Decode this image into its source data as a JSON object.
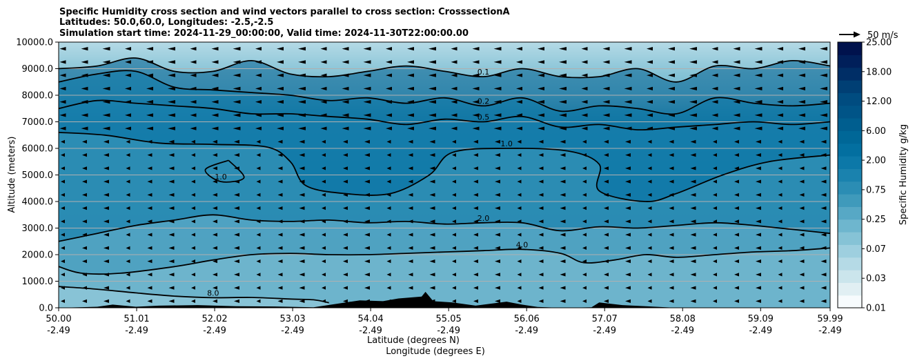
{
  "chart_data": {
    "type": "contour",
    "title_lines": [
      "Specific Humidity cross section and wind vectors parallel to cross section: CrosssectionA",
      "Latitudes: 50.0,60.0, Longitudes: -2.5,-2.5",
      "Simulation start time: 2024-11-29_00:00:00, Valid time: 2024-11-30T22:00:00.00"
    ],
    "ylabel": "Altitude (meters)",
    "xlabel_lat": "Latitude (degrees N)",
    "xlabel_lon": "Longitude (degrees E)",
    "ylim": [
      0,
      10000
    ],
    "xlim": [
      50.0,
      59.99
    ],
    "y_ticks": [
      "0.0",
      "1000.0",
      "2000.0",
      "3000.0",
      "4000.0",
      "5000.0",
      "6000.0",
      "7000.0",
      "8000.0",
      "9000.0",
      "10000.0"
    ],
    "y_tick_values": [
      0,
      1000,
      2000,
      3000,
      4000,
      5000,
      6000,
      7000,
      8000,
      9000,
      10000
    ],
    "x_ticks_lat": [
      "50.00",
      "51.01",
      "52.02",
      "53.03",
      "54.04",
      "55.05",
      "56.06",
      "57.07",
      "58.08",
      "59.09",
      "59.99"
    ],
    "x_ticks_lon": [
      "-2.49",
      "-2.49",
      "-2.49",
      "-2.49",
      "-2.49",
      "-2.49",
      "-2.49",
      "-2.49",
      "-2.49",
      "-2.49",
      "-2.49"
    ],
    "x_tick_values": [
      50.0,
      51.01,
      52.02,
      53.03,
      54.04,
      55.05,
      56.06,
      57.07,
      58.08,
      59.09,
      59.99
    ],
    "grid": "horizontal",
    "colorbar": {
      "label": "Specific Humidity g/kg",
      "ticks": [
        "0.01",
        "0.03",
        "0.07",
        "0.25",
        "0.75",
        "2.00",
        "6.00",
        "12.00",
        "18.00",
        "25.00"
      ],
      "colors": [
        "#f7fbfd",
        "#e1eff3",
        "#cbe5ec",
        "#b5dae6",
        "#9ecfdf",
        "#86c3d6",
        "#6eb6ce",
        "#57a8c5",
        "#3f9abb",
        "#2b8db4",
        "#1a82ae",
        "#0c78a8",
        "#036fa0",
        "#006797",
        "#005e8f",
        "#005487",
        "#004c80",
        "#003f74",
        "#002e66",
        "#001f5a",
        "#00124d"
      ]
    },
    "wind_key_label": "50 m/s",
    "contours": [
      {
        "label": "8.0",
        "points": [
          [
            50.0,
            800
          ],
          [
            50.5,
            700
          ],
          [
            51.0,
            560
          ],
          [
            51.5,
            440
          ],
          [
            52.0,
            380
          ],
          [
            52.5,
            390
          ],
          [
            53.0,
            330
          ],
          [
            53.3,
            300
          ],
          [
            53.5,
            190
          ]
        ]
      },
      {
        "label": "4.0",
        "points": [
          [
            50.0,
            1550
          ],
          [
            50.3,
            1300
          ],
          [
            50.8,
            1300
          ],
          [
            51.5,
            1550
          ],
          [
            52.0,
            1800
          ],
          [
            52.5,
            2000
          ],
          [
            53.0,
            2050
          ],
          [
            53.5,
            2000
          ],
          [
            54.0,
            2000
          ],
          [
            54.5,
            2050
          ],
          [
            55.0,
            2100
          ],
          [
            55.5,
            2150
          ],
          [
            56.0,
            2200
          ],
          [
            56.5,
            2050
          ],
          [
            56.8,
            1700
          ],
          [
            57.2,
            1800
          ],
          [
            57.6,
            2000
          ],
          [
            58.0,
            1900
          ],
          [
            58.5,
            2000
          ],
          [
            59.0,
            2100
          ],
          [
            59.5,
            2150
          ],
          [
            59.99,
            2250
          ]
        ]
      },
      {
        "label": "2.0",
        "points": [
          [
            50.0,
            2500
          ],
          [
            50.5,
            2800
          ],
          [
            51.0,
            3100
          ],
          [
            51.5,
            3300
          ],
          [
            52.0,
            3500
          ],
          [
            52.5,
            3300
          ],
          [
            53.0,
            3250
          ],
          [
            53.5,
            3300
          ],
          [
            54.0,
            3200
          ],
          [
            54.5,
            3250
          ],
          [
            55.0,
            3150
          ],
          [
            55.5,
            3200
          ],
          [
            56.0,
            3200
          ],
          [
            56.5,
            2900
          ],
          [
            57.0,
            3050
          ],
          [
            57.5,
            3000
          ],
          [
            58.0,
            3100
          ],
          [
            58.5,
            3200
          ],
          [
            59.0,
            3100
          ],
          [
            59.5,
            2950
          ],
          [
            59.99,
            2800
          ]
        ]
      },
      {
        "label": "1.0",
        "points": [
          [
            50.0,
            6600
          ],
          [
            50.6,
            6500
          ],
          [
            51.3,
            6200
          ],
          [
            52.0,
            6150
          ],
          [
            52.7,
            6050
          ],
          [
            53.0,
            5500
          ],
          [
            53.2,
            4600
          ],
          [
            53.7,
            4300
          ],
          [
            54.3,
            4300
          ],
          [
            54.8,
            5000
          ],
          [
            55.1,
            5850
          ],
          [
            55.8,
            6000
          ],
          [
            56.6,
            5900
          ],
          [
            57.0,
            5400
          ],
          [
            57.0,
            4400
          ],
          [
            57.6,
            4000
          ],
          [
            58.0,
            4300
          ],
          [
            58.6,
            5000
          ],
          [
            59.2,
            5500
          ],
          [
            59.99,
            5750
          ]
        ]
      },
      {
        "label": "1.0",
        "points": [
          [
            52.2,
            5550
          ],
          [
            51.9,
            5200
          ],
          [
            52.1,
            4750
          ],
          [
            52.4,
            4900
          ],
          [
            52.2,
            5550
          ]
        ]
      },
      {
        "label": "0.5",
        "points": [
          [
            50.0,
            7500
          ],
          [
            50.5,
            7800
          ],
          [
            51.0,
            7700
          ],
          [
            51.5,
            7600
          ],
          [
            52.0,
            7500
          ],
          [
            52.5,
            7300
          ],
          [
            53.0,
            7300
          ],
          [
            53.5,
            7200
          ],
          [
            54.0,
            7100
          ],
          [
            54.5,
            6900
          ],
          [
            55.0,
            7100
          ],
          [
            55.5,
            7000
          ],
          [
            56.0,
            7200
          ],
          [
            56.5,
            6800
          ],
          [
            57.0,
            6900
          ],
          [
            57.5,
            6700
          ],
          [
            58.0,
            6800
          ],
          [
            58.5,
            6900
          ],
          [
            59.0,
            7000
          ],
          [
            59.5,
            6900
          ],
          [
            59.99,
            7000
          ]
        ]
      },
      {
        "label": "0.2",
        "points": [
          [
            50.0,
            8500
          ],
          [
            50.5,
            8800
          ],
          [
            51.0,
            8900
          ],
          [
            51.5,
            8300
          ],
          [
            52.0,
            8200
          ],
          [
            52.5,
            8100
          ],
          [
            53.0,
            8000
          ],
          [
            53.5,
            7800
          ],
          [
            54.0,
            7900
          ],
          [
            54.5,
            7700
          ],
          [
            55.0,
            7900
          ],
          [
            55.5,
            7600
          ],
          [
            56.0,
            7900
          ],
          [
            56.5,
            7400
          ],
          [
            57.0,
            7600
          ],
          [
            57.5,
            7500
          ],
          [
            58.0,
            7300
          ],
          [
            58.5,
            7900
          ],
          [
            59.0,
            7700
          ],
          [
            59.5,
            7600
          ],
          [
            59.99,
            7700
          ]
        ]
      },
      {
        "label": "0.1",
        "points": [
          [
            50.0,
            9000
          ],
          [
            50.5,
            9100
          ],
          [
            51.0,
            9400
          ],
          [
            51.5,
            8900
          ],
          [
            52.0,
            8900
          ],
          [
            52.5,
            9300
          ],
          [
            53.0,
            8800
          ],
          [
            53.5,
            8700
          ],
          [
            54.0,
            8900
          ],
          [
            54.5,
            9100
          ],
          [
            55.0,
            8900
          ],
          [
            55.5,
            8700
          ],
          [
            56.0,
            9000
          ],
          [
            56.5,
            8700
          ],
          [
            57.0,
            8700
          ],
          [
            57.5,
            9000
          ],
          [
            58.0,
            8500
          ],
          [
            58.5,
            9100
          ],
          [
            59.0,
            9000
          ],
          [
            59.5,
            9300
          ],
          [
            59.99,
            9100
          ]
        ]
      }
    ],
    "terrain": [
      [
        50.0,
        0
      ],
      [
        50.5,
        40
      ],
      [
        50.7,
        120
      ],
      [
        51.0,
        40
      ],
      [
        51.3,
        80
      ],
      [
        51.8,
        100
      ],
      [
        52.3,
        60
      ],
      [
        52.8,
        50
      ],
      [
        53.3,
        20
      ],
      [
        53.6,
        150
      ],
      [
        53.9,
        280
      ],
      [
        54.2,
        250
      ],
      [
        54.4,
        350
      ],
      [
        54.7,
        420
      ],
      [
        54.75,
        600
      ],
      [
        54.85,
        250
      ],
      [
        55.1,
        200
      ],
      [
        55.4,
        80
      ],
      [
        55.8,
        230
      ],
      [
        56.0,
        120
      ],
      [
        56.2,
        30
      ],
      [
        56.5,
        0
      ],
      [
        56.9,
        20
      ],
      [
        57.0,
        200
      ],
      [
        57.3,
        100
      ],
      [
        57.6,
        60
      ],
      [
        58.0,
        0
      ],
      [
        59.99,
        0
      ]
    ]
  }
}
